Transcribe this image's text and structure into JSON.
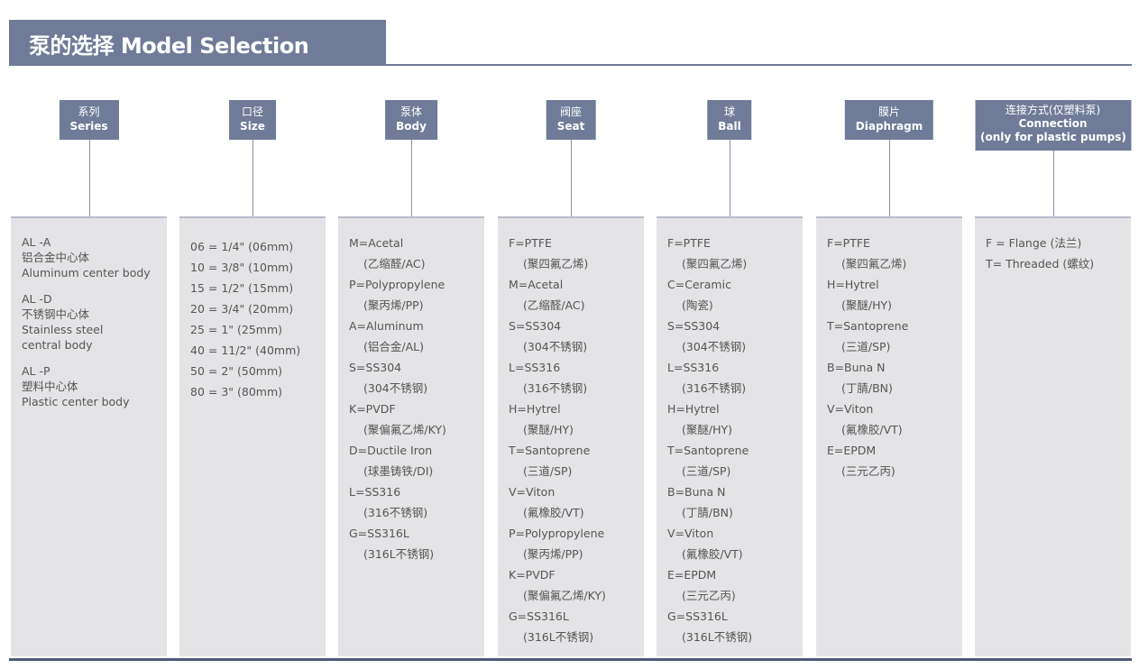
{
  "title": "泵的选择 Model Selection",
  "columns": [
    {
      "id": "series",
      "header_zh": "系列",
      "header_en": "Series",
      "groups": [
        [
          "AL -A",
          "铝合金中心体",
          "Aluminum center body"
        ],
        [
          "AL -D",
          "不锈钢中心体",
          "Stainless steel",
          "central body"
        ],
        [
          "AL -P",
          "塑料中心体",
          "Plastic center body"
        ]
      ]
    },
    {
      "id": "size",
      "header_zh": "口径",
      "header_en": "Size",
      "lines": [
        "06 = 1/4\" (06mm)",
        "10 = 3/8\" (10mm)",
        "15 = 1/2\" (15mm)",
        "20 = 3/4\" (20mm)",
        "25 = 1\" (25mm)",
        "40 = 11/2\" (40mm)",
        "50 = 2\" (50mm)",
        "80 = 3\" (80mm)"
      ]
    },
    {
      "id": "body",
      "header_zh": "泵体",
      "header_en": "Body",
      "lines": [
        "M=Acetal",
        "(乙缩醛/AC)",
        "P=Polypropylene",
        "(聚丙烯/PP)",
        "A=Aluminum",
        "(铝合金/AL)",
        "S=SS304",
        "(304不锈钢)",
        "K=PVDF",
        "(聚偏氟乙烯/KY)",
        "D=Ductile Iron",
        "(球墨铸铁/DI)",
        "L=SS316",
        "(316不锈钢)",
        "G=SS316L",
        "(316L不锈钢)"
      ]
    },
    {
      "id": "seat",
      "header_zh": "阀座",
      "header_en": "Seat",
      "lines": [
        "F=PTFE",
        "(聚四氟乙烯)",
        "M=Acetal",
        "(乙缩醛/AC)",
        "S=SS304",
        "(304不锈钢)",
        "L=SS316",
        "(316不锈钢)",
        "H=Hytrel",
        "(聚醚/HY)",
        "T=Santoprene",
        "(三道/SP)",
        "V=Viton",
        "(氟橡胶/VT)",
        "P=Polypropylene",
        "(聚丙烯/PP)",
        "K=PVDF",
        "(聚偏氟乙烯/KY)",
        "G=SS316L",
        "(316L不锈钢)"
      ]
    },
    {
      "id": "ball",
      "header_zh": "球",
      "header_en": "Ball",
      "lines": [
        "F=PTFE",
        "(聚四氟乙烯)",
        "C=Ceramic",
        "(陶瓷)",
        "S=SS304",
        "(304不锈钢)",
        "L=SS316",
        "(316不锈钢)",
        "H=Hytrel",
        "(聚醚/HY)",
        "T=Santoprene",
        "(三道/SP)",
        "B=Buna N",
        "(丁腈/BN)",
        "V=Viton",
        "(氟橡胶/VT)",
        "E=EPDM",
        "(三元乙丙)",
        "G=SS316L",
        "(316L不锈钢)"
      ]
    },
    {
      "id": "diaphragm",
      "header_zh": "膜片",
      "header_en": "Diaphragm",
      "lines": [
        "F=PTFE",
        "(聚四氟乙烯)",
        "H=Hytrel",
        "(聚醚/HY)",
        "T=Santoprene",
        "(三道/SP)",
        "B=Buna N",
        "(丁腈/BN)",
        "V=Viton",
        "(氟橡胶/VT)",
        "E=EPDM",
        "(三元乙丙)"
      ]
    },
    {
      "id": "connection",
      "header_zh": "连接方式(仅塑料泵)",
      "header_en": "Connection",
      "header_note": "(only for plastic pumps)",
      "lines": [
        "F = Flange (法兰)",
        "T= Threaded (螺纹)"
      ]
    }
  ],
  "colors": {
    "header_bg": "#6f7b98",
    "panel_bg": "#e4e4e6",
    "text": "#555555"
  }
}
